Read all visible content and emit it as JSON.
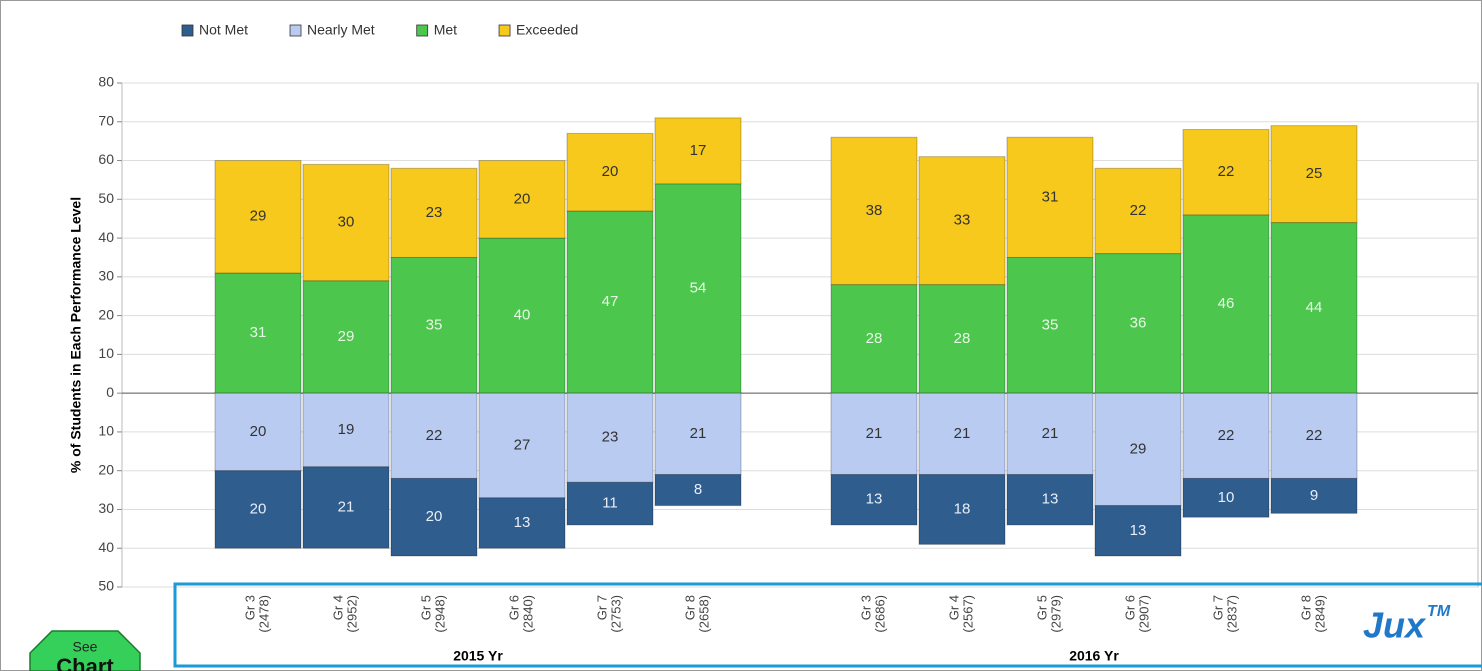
{
  "chart_data": {
    "type": "diverging-stacked-bar",
    "y_label": "% of Students in Each Performance Level",
    "groups": [
      {
        "label": "2015 Yr",
        "categories": [
          [
            "Gr 3",
            "(2478)"
          ],
          [
            "Gr 4",
            "(2952)"
          ],
          [
            "Gr 5",
            "(2948)"
          ],
          [
            "Gr 6",
            "(2840)"
          ],
          [
            "Gr 7",
            "(2753)"
          ],
          [
            "Gr 8",
            "(2658)"
          ]
        ]
      },
      {
        "label": "2016 Yr",
        "categories": [
          [
            "Gr 3",
            "(2686)"
          ],
          [
            "Gr 4",
            "(2567)"
          ],
          [
            "Gr 5",
            "(2979)"
          ],
          [
            "Gr 6",
            "(2907)"
          ],
          [
            "Gr 7",
            "(2837)"
          ],
          [
            "Gr 8",
            "(2849)"
          ]
        ]
      }
    ],
    "series": [
      {
        "name": "Not Met",
        "color": "#2f5d8e",
        "label_color": "#e8eef8",
        "values": [
          -20,
          -21,
          -20,
          -13,
          -11,
          -8,
          -13,
          -18,
          -13,
          -13,
          -10,
          -9
        ],
        "value_labels": [
          "20",
          "21",
          "20",
          "13",
          "11",
          "8",
          "13",
          "18",
          "13",
          "13",
          "10",
          "9"
        ]
      },
      {
        "name": "Nearly Met",
        "color": "#b9cbf0",
        "label_color": "#333333",
        "values": [
          -20,
          -19,
          -22,
          -27,
          -23,
          -21,
          -21,
          -21,
          -21,
          -29,
          -22,
          -22
        ],
        "value_labels": [
          "20",
          "19",
          "22",
          "27",
          "23",
          "21",
          "21",
          "21",
          "21",
          "29",
          "22",
          "22"
        ]
      },
      {
        "name": "Met",
        "color": "#4cc64c",
        "label_color": "#e8f8e8",
        "values": [
          31,
          29,
          35,
          40,
          47,
          54,
          28,
          28,
          35,
          36,
          46,
          44
        ]
      },
      {
        "name": "Exceeded",
        "color": "#f6c91c",
        "label_color": "#333333",
        "values": [
          29,
          30,
          23,
          20,
          20,
          17,
          38,
          33,
          31,
          22,
          22,
          25
        ]
      }
    ],
    "ylim": [
      -50,
      80
    ],
    "yticks": [
      {
        "value": -50,
        "label": "50"
      },
      {
        "value": -40,
        "label": "40"
      },
      {
        "value": -30,
        "label": "30"
      },
      {
        "value": -20,
        "label": "20"
      },
      {
        "value": -10,
        "label": "10"
      },
      0,
      10,
      20,
      30,
      40,
      50,
      60,
      70,
      80
    ],
    "grid": true,
    "legend": "top"
  },
  "overlay": {
    "button": [
      "See",
      "Chart"
    ],
    "logo": "Jux",
    "logo_mark": "TM"
  }
}
